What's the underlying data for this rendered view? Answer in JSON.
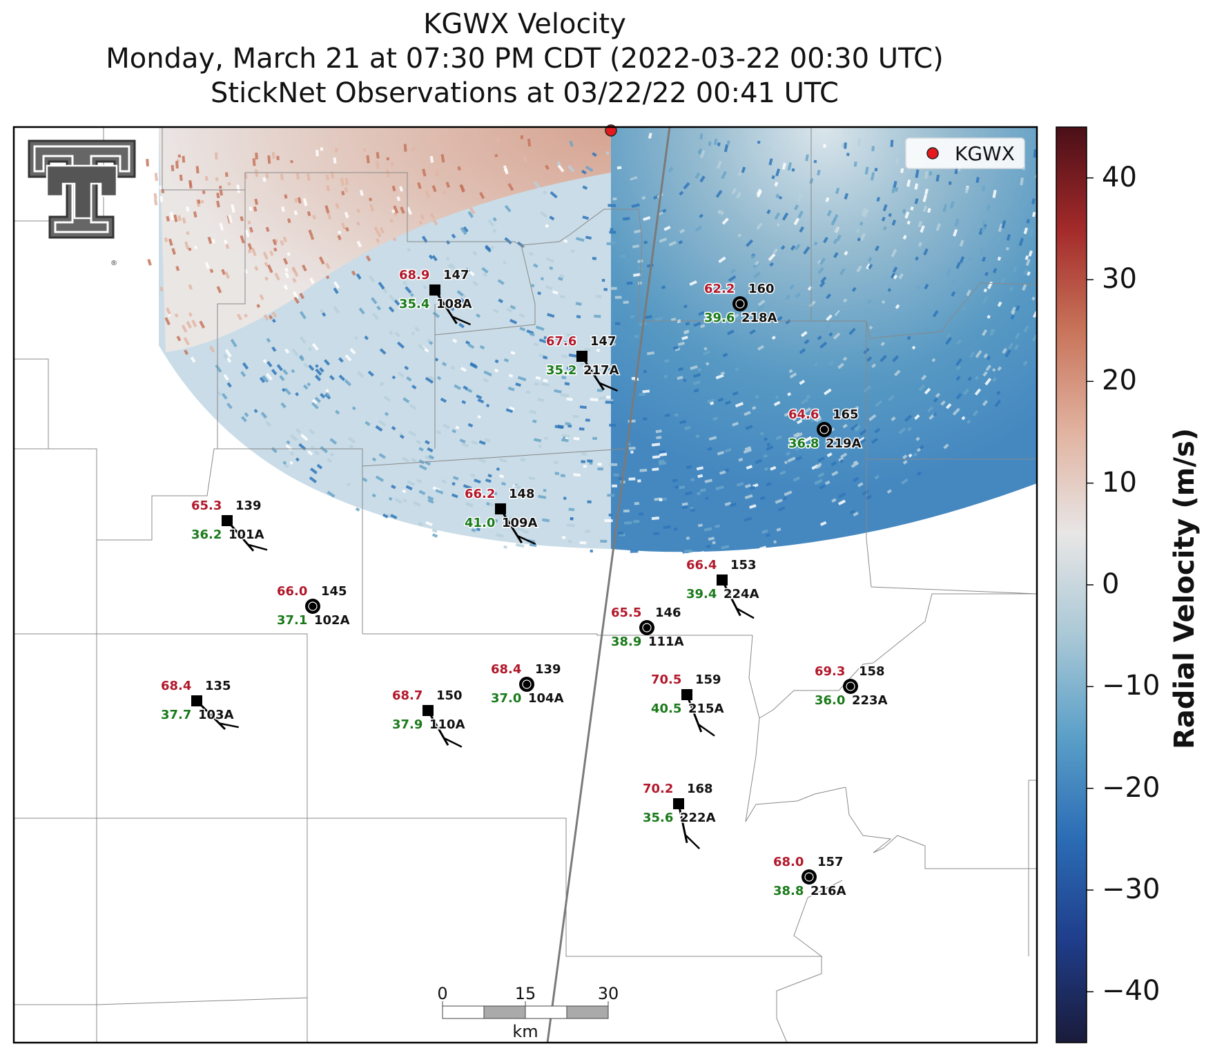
{
  "title": {
    "line1": "KGWX Velocity",
    "line2": "Monday, March 21 at 07:30 PM CDT (2022-03-22 00:30 UTC)",
    "line3": "StickNet Observations at 03/22/22 00:41 UTC"
  },
  "legend": {
    "label": "KGWX",
    "marker_color": "#e41a1c"
  },
  "colorbar": {
    "label": "Radial Velocity (m/s)",
    "ticks": [
      "40",
      "30",
      "20",
      "10",
      "0",
      "−10",
      "−20",
      "−30",
      "−40"
    ],
    "range": [
      -45,
      45
    ],
    "colors": [
      "#1a1b3a",
      "#1f3d8a",
      "#2b6cb5",
      "#5a9fc8",
      "#a9c8d6",
      "#e8e6e6",
      "#e1b3a0",
      "#c8745a",
      "#a32a2a",
      "#4a0f17"
    ]
  },
  "scalebar": {
    "ticks": [
      "0",
      "15",
      "30"
    ],
    "unit": "km"
  },
  "logo": {
    "name": "Texas Tech Double T",
    "mark": "®"
  },
  "stations": [
    {
      "id": "108A",
      "temp": "68.9",
      "dew": "35.4",
      "dir": "147",
      "marker": "square"
    },
    {
      "id": "218A",
      "temp": "62.2",
      "dew": "39.6",
      "dir": "160",
      "marker": "circle"
    },
    {
      "id": "217A",
      "temp": "67.6",
      "dew": "35.2",
      "dir": "147",
      "marker": "square"
    },
    {
      "id": "219A",
      "temp": "64.6",
      "dew": "36.8",
      "dir": "165",
      "marker": "circle"
    },
    {
      "id": "101A",
      "temp": "65.3",
      "dew": "36.2",
      "dir": "139",
      "marker": "square"
    },
    {
      "id": "109A",
      "temp": "66.2",
      "dew": "41.0",
      "dir": "148",
      "marker": "square"
    },
    {
      "id": "224A",
      "temp": "66.4",
      "dew": "39.4",
      "dir": "153",
      "marker": "square"
    },
    {
      "id": "102A",
      "temp": "66.0",
      "dew": "37.1",
      "dir": "145",
      "marker": "circle"
    },
    {
      "id": "111A",
      "temp": "65.5",
      "dew": "38.9",
      "dir": "146",
      "marker": "circle"
    },
    {
      "id": "103A",
      "temp": "68.4",
      "dew": "37.7",
      "dir": "135",
      "marker": "square"
    },
    {
      "id": "104A",
      "temp": "68.4",
      "dew": "37.0",
      "dir": "139",
      "marker": "circle"
    },
    {
      "id": "110A",
      "temp": "68.7",
      "dew": "37.9",
      "dir": "150",
      "marker": "square"
    },
    {
      "id": "215A",
      "temp": "70.5",
      "dew": "40.5",
      "dir": "159",
      "marker": "square"
    },
    {
      "id": "223A",
      "temp": "69.3",
      "dew": "36.0",
      "dir": "158",
      "marker": "circle"
    },
    {
      "id": "222A",
      "temp": "70.2",
      "dew": "35.6",
      "dir": "168",
      "marker": "square"
    },
    {
      "id": "216A",
      "temp": "68.0",
      "dew": "38.8",
      "dir": "157",
      "marker": "circle"
    }
  ]
}
